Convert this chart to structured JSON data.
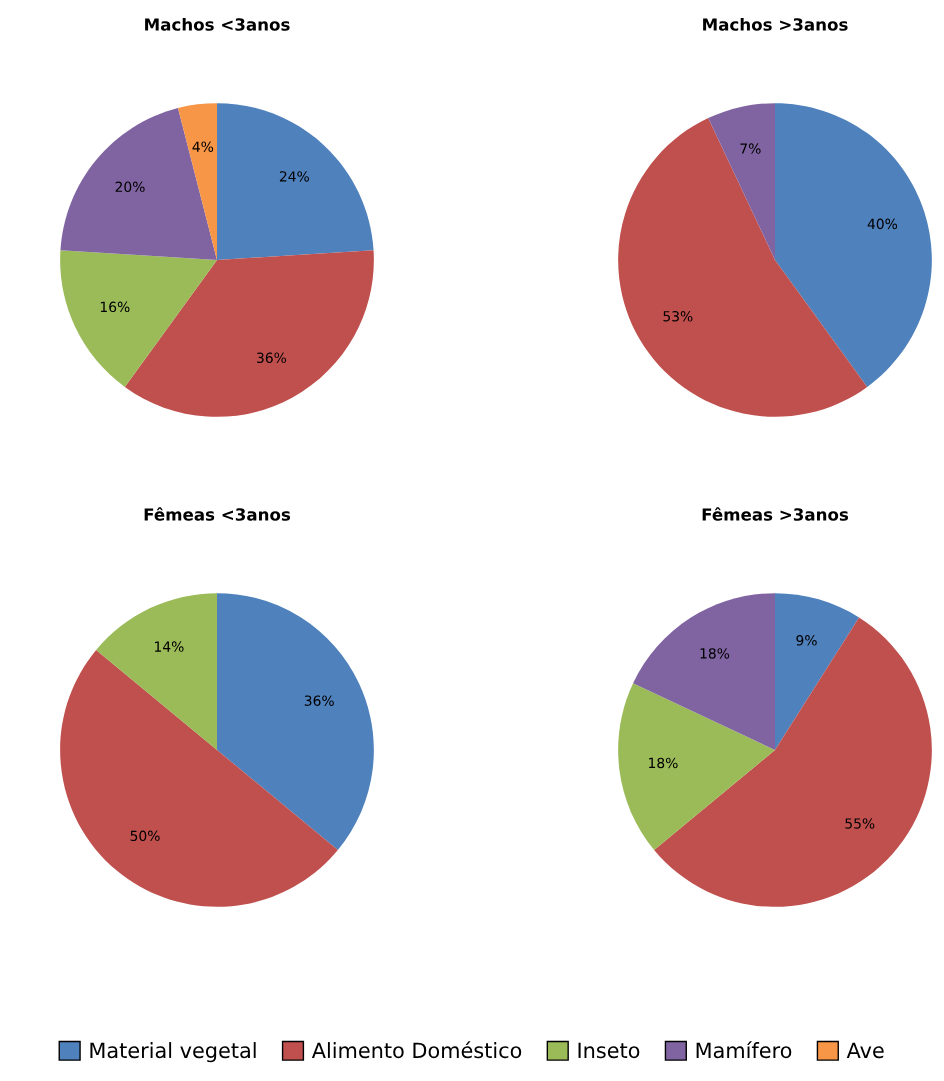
{
  "chart_data": [
    {
      "type": "pie",
      "title": "Machos <3anos",
      "categories": [
        "Material vegetal",
        "Alimento Doméstico",
        "Inseto",
        "Mamífero",
        "Ave"
      ],
      "values": [
        24,
        36,
        16,
        20,
        4
      ],
      "value_labels": [
        "24%",
        "36%",
        "16%",
        "20%",
        "4%"
      ],
      "colors": [
        "#4f81bd",
        "#c0504d",
        "#9bbb59",
        "#8064a2",
        "#f79646"
      ],
      "legend": "bottom"
    },
    {
      "type": "pie",
      "title": "Machos >3anos",
      "categories": [
        null,
        null,
        null
      ],
      "values": [
        40,
        53,
        7
      ],
      "value_labels": [
        "40%",
        "53%",
        "7%"
      ],
      "colors": [
        "#4f81bd",
        "#c0504d",
        "#8064a2"
      ]
    },
    {
      "type": "pie",
      "title": "Fêmeas <3anos",
      "categories": [
        null,
        null,
        null
      ],
      "values": [
        36,
        50,
        14
      ],
      "value_labels": [
        "36%",
        "50%",
        "14%"
      ],
      "colors": [
        "#4f81bd",
        "#c0504d",
        "#9bbb59"
      ]
    },
    {
      "type": "pie",
      "title": "Fêmeas >3anos",
      "categories": [
        null,
        null,
        null,
        null
      ],
      "values": [
        9,
        55,
        18,
        18
      ],
      "value_labels": [
        "9%",
        "55%",
        "18%",
        "18%"
      ],
      "colors": [
        "#4f81bd",
        "#c0504d",
        "#9bbb59",
        "#8064a2"
      ]
    }
  ]
}
